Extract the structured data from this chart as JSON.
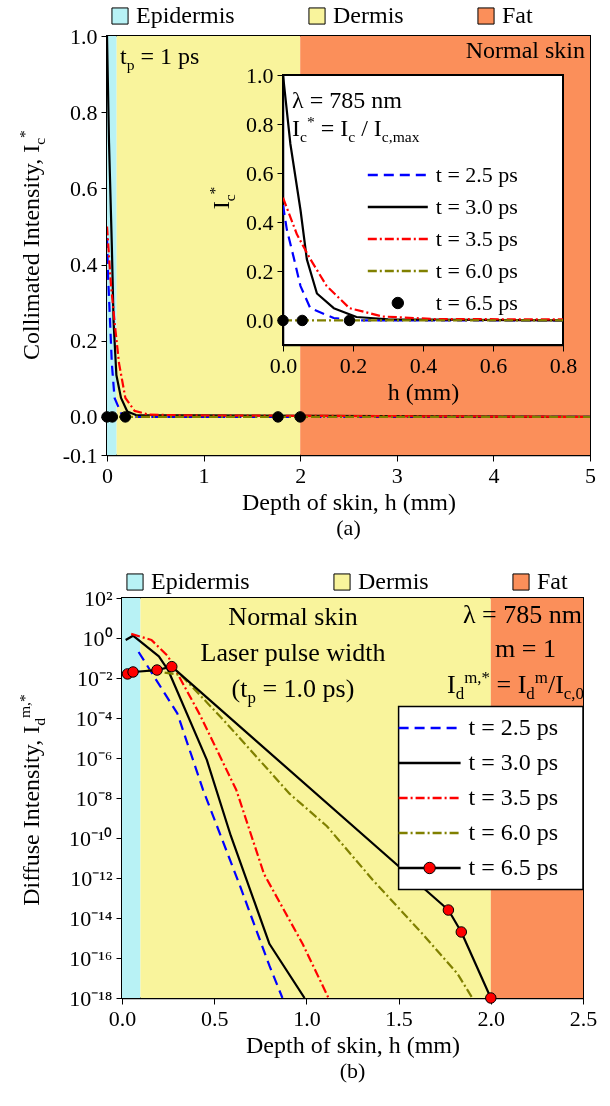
{
  "chart_data": [
    {
      "type": "line",
      "title": "(a)",
      "xlabel": "Depth of skin, h (mm)",
      "ylabel": "Collimated Intensity, I$_{c}$$^{*}$",
      "xlim": [
        0,
        5
      ],
      "xticks": [
        0,
        1,
        2,
        3,
        4,
        5
      ],
      "ylim": [
        -0.1,
        1.0
      ],
      "yticks": [
        -0.1,
        {
          "value": 0,
          "label": "0.0"
        },
        0.2,
        0.4,
        0.6,
        0.8,
        {
          "value": 1,
          "label": "1.0"
        }
      ],
      "legend": "top",
      "bands": [
        {
          "axis": "x",
          "from": 0,
          "to": 0.1,
          "label": "Epidermis",
          "color": "#b8f2f5"
        },
        {
          "axis": "x",
          "from": 0.1,
          "to": 2,
          "label": "Dermis",
          "color": "#f9f49c"
        },
        {
          "axis": "x",
          "from": 2,
          "to": 5,
          "label": "Fat",
          "color": "#fb8f5a"
        }
      ],
      "annotations": [
        "t$_{p}$ = 1 ps",
        "Normal skin"
      ],
      "series": [
        {
          "color": "#0000ff",
          "line_style": "dashed",
          "x": [
            0,
            0.011,
            0.03,
            0.05,
            0.078,
            0.145,
            0.22,
            5
          ],
          "values": [
            0.47,
            0.37,
            0.26,
            0.14,
            0.05,
            0.01,
            0,
            0
          ]
        },
        {
          "color": "#000000",
          "line_style": "solid",
          "x": [
            0,
            0.021,
            0.05,
            0.068,
            0.097,
            0.145,
            0.21,
            0.3,
            5
          ],
          "values": [
            1.0,
            0.72,
            0.45,
            0.25,
            0.11,
            0.05,
            0.014,
            0.005,
            0
          ]
        },
        {
          "color": "#ff0000",
          "line_style": "dashdot",
          "x": [
            0,
            0.04,
            0.078,
            0.125,
            0.19,
            0.285,
            0.43,
            0.8,
            5
          ],
          "values": [
            0.5,
            0.35,
            0.25,
            0.14,
            0.05,
            0.016,
            0.006,
            0.004,
            0
          ]
        },
        {
          "color": "#808000",
          "line_style": "dashdot",
          "x": [
            0,
            5
          ],
          "values": [
            0,
            0
          ]
        },
        {
          "type": "scatter",
          "color": "#000000",
          "marker": "circle",
          "x": [
            0,
            0.055,
            0.19,
            1.77,
            2.0
          ],
          "values": [
            0,
            0,
            0,
            0,
            0
          ]
        }
      ]
    },
    {
      "type": "line",
      "xlabel": "h (mm)",
      "ylabel": "I$_{c}$$^{*}$",
      "xlim": [
        0,
        0.8
      ],
      "xticks": [
        {
          "value": 0,
          "label": "0.0"
        },
        0.2,
        0.4,
        0.6,
        0.8
      ],
      "ylim": [
        -0.1,
        1.0
      ],
      "yticks": [
        {
          "value": 0,
          "label": "0.0"
        },
        0.2,
        0.4,
        0.6,
        0.8,
        {
          "value": 1,
          "label": "1.0"
        }
      ],
      "legend": "bottom right",
      "annotations": [
        "λ = 785 nm",
        "I$_{c}$$^{*}$ = I$_{c}$ / I$_{c,max}$"
      ],
      "series": [
        {
          "name": "t = 2.5 ps",
          "color": "#0000ff",
          "line_style": "dashed",
          "x": [
            0,
            0.011,
            0.03,
            0.05,
            0.078,
            0.145,
            0.22,
            0.8
          ],
          "values": [
            0.47,
            0.37,
            0.26,
            0.14,
            0.05,
            0.01,
            0,
            0
          ]
        },
        {
          "name": "t = 3.0 ps",
          "color": "#000000",
          "line_style": "solid",
          "x": [
            0,
            0.021,
            0.05,
            0.068,
            0.097,
            0.145,
            0.21,
            0.3,
            0.8
          ],
          "values": [
            1.0,
            0.72,
            0.45,
            0.25,
            0.11,
            0.05,
            0.014,
            0.005,
            0
          ]
        },
        {
          "name": "t = 3.5 ps",
          "color": "#ff0000",
          "line_style": "dashdot",
          "x": [
            0,
            0.04,
            0.078,
            0.125,
            0.19,
            0.285,
            0.43,
            0.8
          ],
          "values": [
            0.5,
            0.35,
            0.25,
            0.14,
            0.05,
            0.016,
            0.006,
            0.004
          ]
        },
        {
          "name": "t = 6.0 ps",
          "color": "#808000",
          "line_style": "dashdot",
          "x": [
            0,
            0.8
          ],
          "values": [
            0,
            0
          ]
        },
        {
          "name": "t = 6.5 ps",
          "type": "scatter",
          "color": "#000000",
          "marker": "circle",
          "x": [
            0,
            0.055,
            0.19
          ],
          "values": [
            0,
            0,
            0
          ]
        }
      ]
    },
    {
      "type": "line",
      "title": "(b)",
      "log": true,
      "xlabel": "Depth of skin, h (mm)",
      "ylabel": "Diffuse Intensity, I$_{d}$$^{m,*}$",
      "xlim": [
        0,
        2.5
      ],
      "xticks": [
        {
          "value": 0,
          "label": "0.0"
        },
        0.5,
        {
          "value": 1,
          "label": "1.0"
        },
        1.5,
        {
          "value": 2,
          "label": "2.0"
        },
        2.5
      ],
      "ylim": [
        1e-18,
        100
      ],
      "yticks": [
        {
          "value": 100,
          "label": "10²"
        },
        {
          "value": 1,
          "label": "10⁰"
        },
        {
          "value": 0.01,
          "label": "10⁻²"
        },
        {
          "value": 0.0001,
          "label": "10⁻⁴"
        },
        {
          "value": 1e-06,
          "label": "10⁻⁶"
        },
        {
          "value": 1e-08,
          "label": "10⁻⁸"
        },
        {
          "value": 1e-10,
          "label": "10⁻¹⁰"
        },
        {
          "value": 1e-12,
          "label": "10⁻¹²"
        },
        {
          "value": 1e-14,
          "label": "10⁻¹⁴"
        },
        {
          "value": 1e-16,
          "label": "10⁻¹⁶"
        },
        {
          "value": 1e-18,
          "label": "10⁻¹⁸"
        }
      ],
      "legend": "right",
      "bands": [
        {
          "axis": "x",
          "from": 0,
          "to": 0.1,
          "label": "Epidermis",
          "color": "#b8f2f5"
        },
        {
          "axis": "x",
          "from": 0.1,
          "to": 2,
          "label": "Dermis",
          "color": "#f9f49c"
        },
        {
          "axis": "x",
          "from": 2,
          "to": 2.5,
          "label": "Fat",
          "color": "#fb8f5a"
        }
      ],
      "annotations": [
        "Normal skin",
        "Laser pulse width",
        "(t$_{p}$ = 1.0 ps)",
        "λ = 785 nm",
        "m = 1",
        "I$_{d}$$^{m,*}$ = I$_{d}$$^{m}$/I$_{c,0}$"
      ],
      "series": [
        {
          "name": "t = 2.5 ps",
          "color": "#0000ff",
          "line_style": "dashed",
          "x": [
            0.09,
            0.3,
            0.44,
            0.64,
            0.8,
            0.87
          ],
          "values": [
            0.2,
            0.00017,
            2.5e-08,
            4e-13,
            4e-17,
            1e-18
          ]
        },
        {
          "name": "t = 3.0 ps",
          "color": "#000000",
          "line_style": "solid",
          "x": [
            0.02,
            0.06,
            0.2,
            0.25,
            0.46,
            0.59,
            0.8,
            0.99
          ],
          "values": [
            0.8,
            1.3,
            0.12,
            0.025,
            8e-07,
            1.3e-10,
            5e-16,
            1e-18
          ]
        },
        {
          "name": "t = 3.5 ps",
          "color": "#ff0000",
          "line_style": "dashdot",
          "x": [
            0.05,
            0.16,
            0.25,
            0.42,
            0.62,
            0.77,
            0.98,
            1.12
          ],
          "values": [
            1.6,
            0.8,
            0.12,
            0.00016,
            2.5e-08,
            1.6e-12,
            5e-16,
            1e-18
          ]
        },
        {
          "name": "t = 6.0 ps",
          "color": "#808000",
          "line_style": "dashdot",
          "x": [
            0.14,
            0.32,
            0.55,
            0.91,
            1.11,
            1.36,
            1.63,
            1.82,
            1.9
          ],
          "values": [
            0.025,
            0.014,
            8e-05,
            1.6e-08,
            4e-10,
            8e-13,
            1.6e-15,
            1.6e-17,
            1e-18
          ]
        },
        {
          "name": "t = 6.5 ps",
          "color": "#000000",
          "line_style": "solid",
          "marker": "circle",
          "colors": [
            "#ff0000",
            "#ff0000",
            "#ff0000",
            "#ff0000",
            "#ff0000",
            "#ff0000",
            "#ff0000"
          ],
          "x": [
            0.03,
            0.06,
            0.19,
            0.27,
            1.77,
            1.84,
            2.0
          ],
          "values": [
            0.016,
            0.02,
            0.025,
            0.037,
            2.5e-14,
            2e-15,
            1e-18
          ]
        }
      ]
    }
  ]
}
